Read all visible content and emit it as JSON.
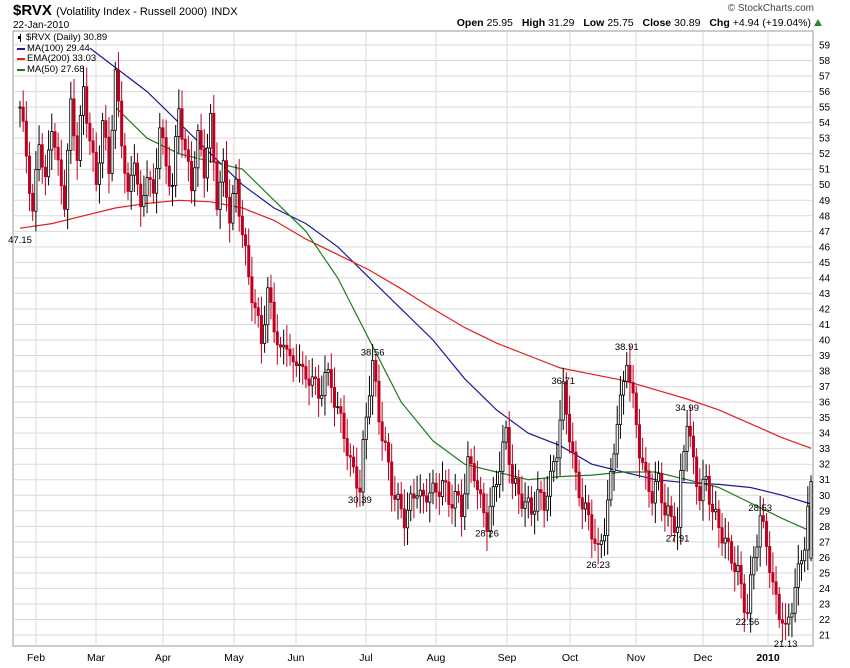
{
  "header": {
    "symbol": "$RVX",
    "description": "(Volatility Index - Russell 2000)",
    "exchange": "INDX",
    "date": "22-Jan-2010",
    "brand": "© StockCharts.com",
    "open_label": "Open",
    "open": "25.95",
    "high_label": "High",
    "high": "31.29",
    "low_label": "Low",
    "low": "25.75",
    "close_label": "Close",
    "close": "30.89",
    "chg_label": "Chg",
    "chg": "+4.94 (+19.04%)"
  },
  "legend": [
    {
      "text": "$RVX (Daily) 30.89",
      "color": "#000000",
      "style": "candle"
    },
    {
      "text": "MA(100) 29.44",
      "color": "#1a1a99",
      "style": "line"
    },
    {
      "text": "EMA(200) 33.03",
      "color": "#e0201a",
      "style": "line"
    },
    {
      "text": "MA(50) 27.68",
      "color": "#1f7a1f",
      "style": "line"
    }
  ],
  "chart_data": {
    "type": "line",
    "y_axis": {
      "side": "right",
      "min": 21,
      "max": 59,
      "tick_step": 1
    },
    "x_labels": [
      "Feb",
      "Mar",
      "Apr",
      "May",
      "Jun",
      "Jul",
      "Aug",
      "Sep",
      "Oct",
      "Nov",
      "Dec",
      "2010"
    ],
    "grid": true,
    "colors": {
      "up_candle": "#000000",
      "down_candle": "#c00020",
      "grid": "#d9d9d9"
    },
    "price_series": {
      "name": "$RVX (Daily)",
      "style": "candlestick",
      "points": [
        [
          0,
          55
        ],
        [
          2,
          52
        ],
        [
          4,
          48
        ],
        [
          6,
          53
        ],
        [
          8,
          50
        ],
        [
          10,
          54
        ],
        [
          12,
          51
        ],
        [
          14,
          49
        ],
        [
          16,
          55
        ],
        [
          18,
          52
        ],
        [
          20,
          56
        ],
        [
          22,
          53
        ],
        [
          24,
          50
        ],
        [
          26,
          54
        ],
        [
          28,
          51
        ],
        [
          30,
          57
        ],
        [
          32,
          53
        ],
        [
          34,
          49
        ],
        [
          36,
          52
        ],
        [
          38,
          48
        ],
        [
          40,
          51
        ],
        [
          42,
          49
        ],
        [
          44,
          54
        ],
        [
          46,
          51
        ],
        [
          48,
          50
        ],
        [
          50,
          55
        ],
        [
          52,
          52
        ],
        [
          54,
          50
        ],
        [
          56,
          53
        ],
        [
          58,
          51
        ],
        [
          60,
          54
        ],
        [
          62,
          49
        ],
        [
          64,
          51
        ],
        [
          66,
          48
        ],
        [
          68,
          50
        ],
        [
          70,
          47
        ],
        [
          72,
          44
        ],
        [
          74,
          42
        ],
        [
          76,
          40
        ],
        [
          78,
          43
        ],
        [
          80,
          41
        ],
        [
          82,
          39
        ],
        [
          84,
          40
        ],
        [
          86,
          38
        ],
        [
          88,
          39
        ],
        [
          90,
          37
        ],
        [
          92,
          38
        ],
        [
          94,
          36
        ],
        [
          96,
          38
        ],
        [
          98,
          37
        ],
        [
          100,
          35.5
        ],
        [
          102,
          34
        ],
        [
          104,
          32
        ],
        [
          106,
          31
        ],
        [
          107,
          30.39
        ],
        [
          108,
          33
        ],
        [
          110,
          37
        ],
        [
          111,
          38.56
        ],
        [
          113,
          35
        ],
        [
          115,
          33
        ],
        [
          117,
          30.5
        ],
        [
          119,
          29.5
        ],
        [
          121,
          28.5
        ],
        [
          123,
          29.5
        ],
        [
          125,
          30.5
        ],
        [
          127,
          29.5
        ],
        [
          129,
          30.5
        ],
        [
          131,
          30
        ],
        [
          133,
          31
        ],
        [
          135,
          29.5
        ],
        [
          137,
          30
        ],
        [
          139,
          29
        ],
        [
          141,
          32
        ],
        [
          143,
          31.5
        ],
        [
          145,
          29.5
        ],
        [
          147,
          28.26
        ],
        [
          149,
          30
        ],
        [
          151,
          32
        ],
        [
          153,
          34
        ],
        [
          155,
          31
        ],
        [
          157,
          30
        ],
        [
          159,
          29.5
        ],
        [
          161,
          29
        ],
        [
          163,
          30
        ],
        [
          165,
          29.5
        ],
        [
          167,
          31
        ],
        [
          169,
          33
        ],
        [
          171,
          36.71
        ],
        [
          173,
          34
        ],
        [
          175,
          31
        ],
        [
          177,
          29.5
        ],
        [
          179,
          28.5
        ],
        [
          181,
          27
        ],
        [
          182,
          26.23
        ],
        [
          184,
          28
        ],
        [
          186,
          31
        ],
        [
          188,
          35
        ],
        [
          190,
          37
        ],
        [
          191,
          38.91
        ],
        [
          193,
          36
        ],
        [
          195,
          33
        ],
        [
          197,
          31
        ],
        [
          199,
          30
        ],
        [
          201,
          31
        ],
        [
          203,
          29
        ],
        [
          205,
          28.5
        ],
        [
          207,
          27.91
        ],
        [
          208,
          31
        ],
        [
          210,
          34.99
        ],
        [
          212,
          32
        ],
        [
          214,
          30
        ],
        [
          216,
          31
        ],
        [
          218,
          29
        ],
        [
          220,
          28
        ],
        [
          222,
          27
        ],
        [
          224,
          26
        ],
        [
          226,
          25
        ],
        [
          228,
          23
        ],
        [
          229,
          22.56
        ],
        [
          231,
          26
        ],
        [
          233,
          28.53
        ],
        [
          235,
          27
        ],
        [
          237,
          24
        ],
        [
          239,
          22.5
        ],
        [
          240,
          22
        ],
        [
          241,
          21.13
        ],
        [
          243,
          23
        ],
        [
          245,
          25
        ],
        [
          247,
          27
        ],
        [
          249,
          30.89
        ]
      ]
    },
    "series": [
      {
        "name": "MA(100)",
        "color": "#1a1a99",
        "points": [
          [
            22,
            58.8
          ],
          [
            40,
            56
          ],
          [
            50,
            54
          ],
          [
            60,
            52
          ],
          [
            70,
            50
          ],
          [
            80,
            48.5
          ],
          [
            90,
            47.5
          ],
          [
            100,
            46
          ],
          [
            110,
            44
          ],
          [
            120,
            42
          ],
          [
            130,
            40
          ],
          [
            140,
            37.5
          ],
          [
            150,
            35.5
          ],
          [
            160,
            34
          ],
          [
            170,
            33.2
          ],
          [
            180,
            32
          ],
          [
            190,
            31.5
          ],
          [
            200,
            31
          ],
          [
            210,
            30.8
          ],
          [
            220,
            30.7
          ],
          [
            230,
            30.5
          ],
          [
            240,
            30
          ],
          [
            249,
            29.44
          ]
        ]
      },
      {
        "name": "EMA(200)",
        "color": "#e0201a",
        "points": [
          [
            0,
            47.2
          ],
          [
            10,
            47.5
          ],
          [
            20,
            48
          ],
          [
            30,
            48.5
          ],
          [
            40,
            48.8
          ],
          [
            50,
            49
          ],
          [
            60,
            48.9
          ],
          [
            70,
            48.5
          ],
          [
            80,
            47.7
          ],
          [
            90,
            46.5
          ],
          [
            100,
            45.5
          ],
          [
            110,
            44.5
          ],
          [
            120,
            43.3
          ],
          [
            130,
            42
          ],
          [
            140,
            40.8
          ],
          [
            150,
            39.8
          ],
          [
            160,
            39
          ],
          [
            170,
            38.2
          ],
          [
            180,
            37.8
          ],
          [
            190,
            37.4
          ],
          [
            200,
            36.8
          ],
          [
            210,
            36.2
          ],
          [
            220,
            35.5
          ],
          [
            230,
            34.6
          ],
          [
            240,
            33.7
          ],
          [
            249,
            33.03
          ]
        ]
      },
      {
        "name": "MA(50)",
        "color": "#1f7a1f",
        "points": [
          [
            30,
            55
          ],
          [
            40,
            53
          ],
          [
            50,
            52
          ],
          [
            60,
            51.5
          ],
          [
            70,
            51
          ],
          [
            80,
            49
          ],
          [
            90,
            47
          ],
          [
            100,
            44
          ],
          [
            110,
            40
          ],
          [
            120,
            36
          ],
          [
            130,
            33.5
          ],
          [
            140,
            32
          ],
          [
            150,
            31.5
          ],
          [
            160,
            31
          ],
          [
            170,
            31.2
          ],
          [
            180,
            31.3
          ],
          [
            190,
            31.5
          ],
          [
            200,
            31.5
          ],
          [
            210,
            31
          ],
          [
            220,
            30.5
          ],
          [
            230,
            29.5
          ],
          [
            240,
            28.5
          ],
          [
            249,
            27.68
          ]
        ]
      }
    ],
    "annotations": [
      {
        "x": 0,
        "y": 47.15,
        "text": "47.15",
        "pos": "below"
      },
      {
        "x": 107,
        "y": 30.39,
        "text": "30.39",
        "pos": "below"
      },
      {
        "x": 111,
        "y": 38.56,
        "text": "38.56",
        "pos": "above"
      },
      {
        "x": 147,
        "y": 28.26,
        "text": "28.26",
        "pos": "below"
      },
      {
        "x": 171,
        "y": 36.71,
        "text": "36.71",
        "pos": "above"
      },
      {
        "x": 182,
        "y": 26.23,
        "text": "26.23",
        "pos": "below"
      },
      {
        "x": 191,
        "y": 38.91,
        "text": "38.91",
        "pos": "above"
      },
      {
        "x": 207,
        "y": 27.91,
        "text": "27.91",
        "pos": "below"
      },
      {
        "x": 210,
        "y": 34.99,
        "text": "34.99",
        "pos": "above"
      },
      {
        "x": 229,
        "y": 22.56,
        "text": "22.56",
        "pos": "below"
      },
      {
        "x": 233,
        "y": 28.53,
        "text": "28.53",
        "pos": "above"
      },
      {
        "x": 241,
        "y": 21.13,
        "text": "21.13",
        "pos": "below"
      }
    ]
  }
}
